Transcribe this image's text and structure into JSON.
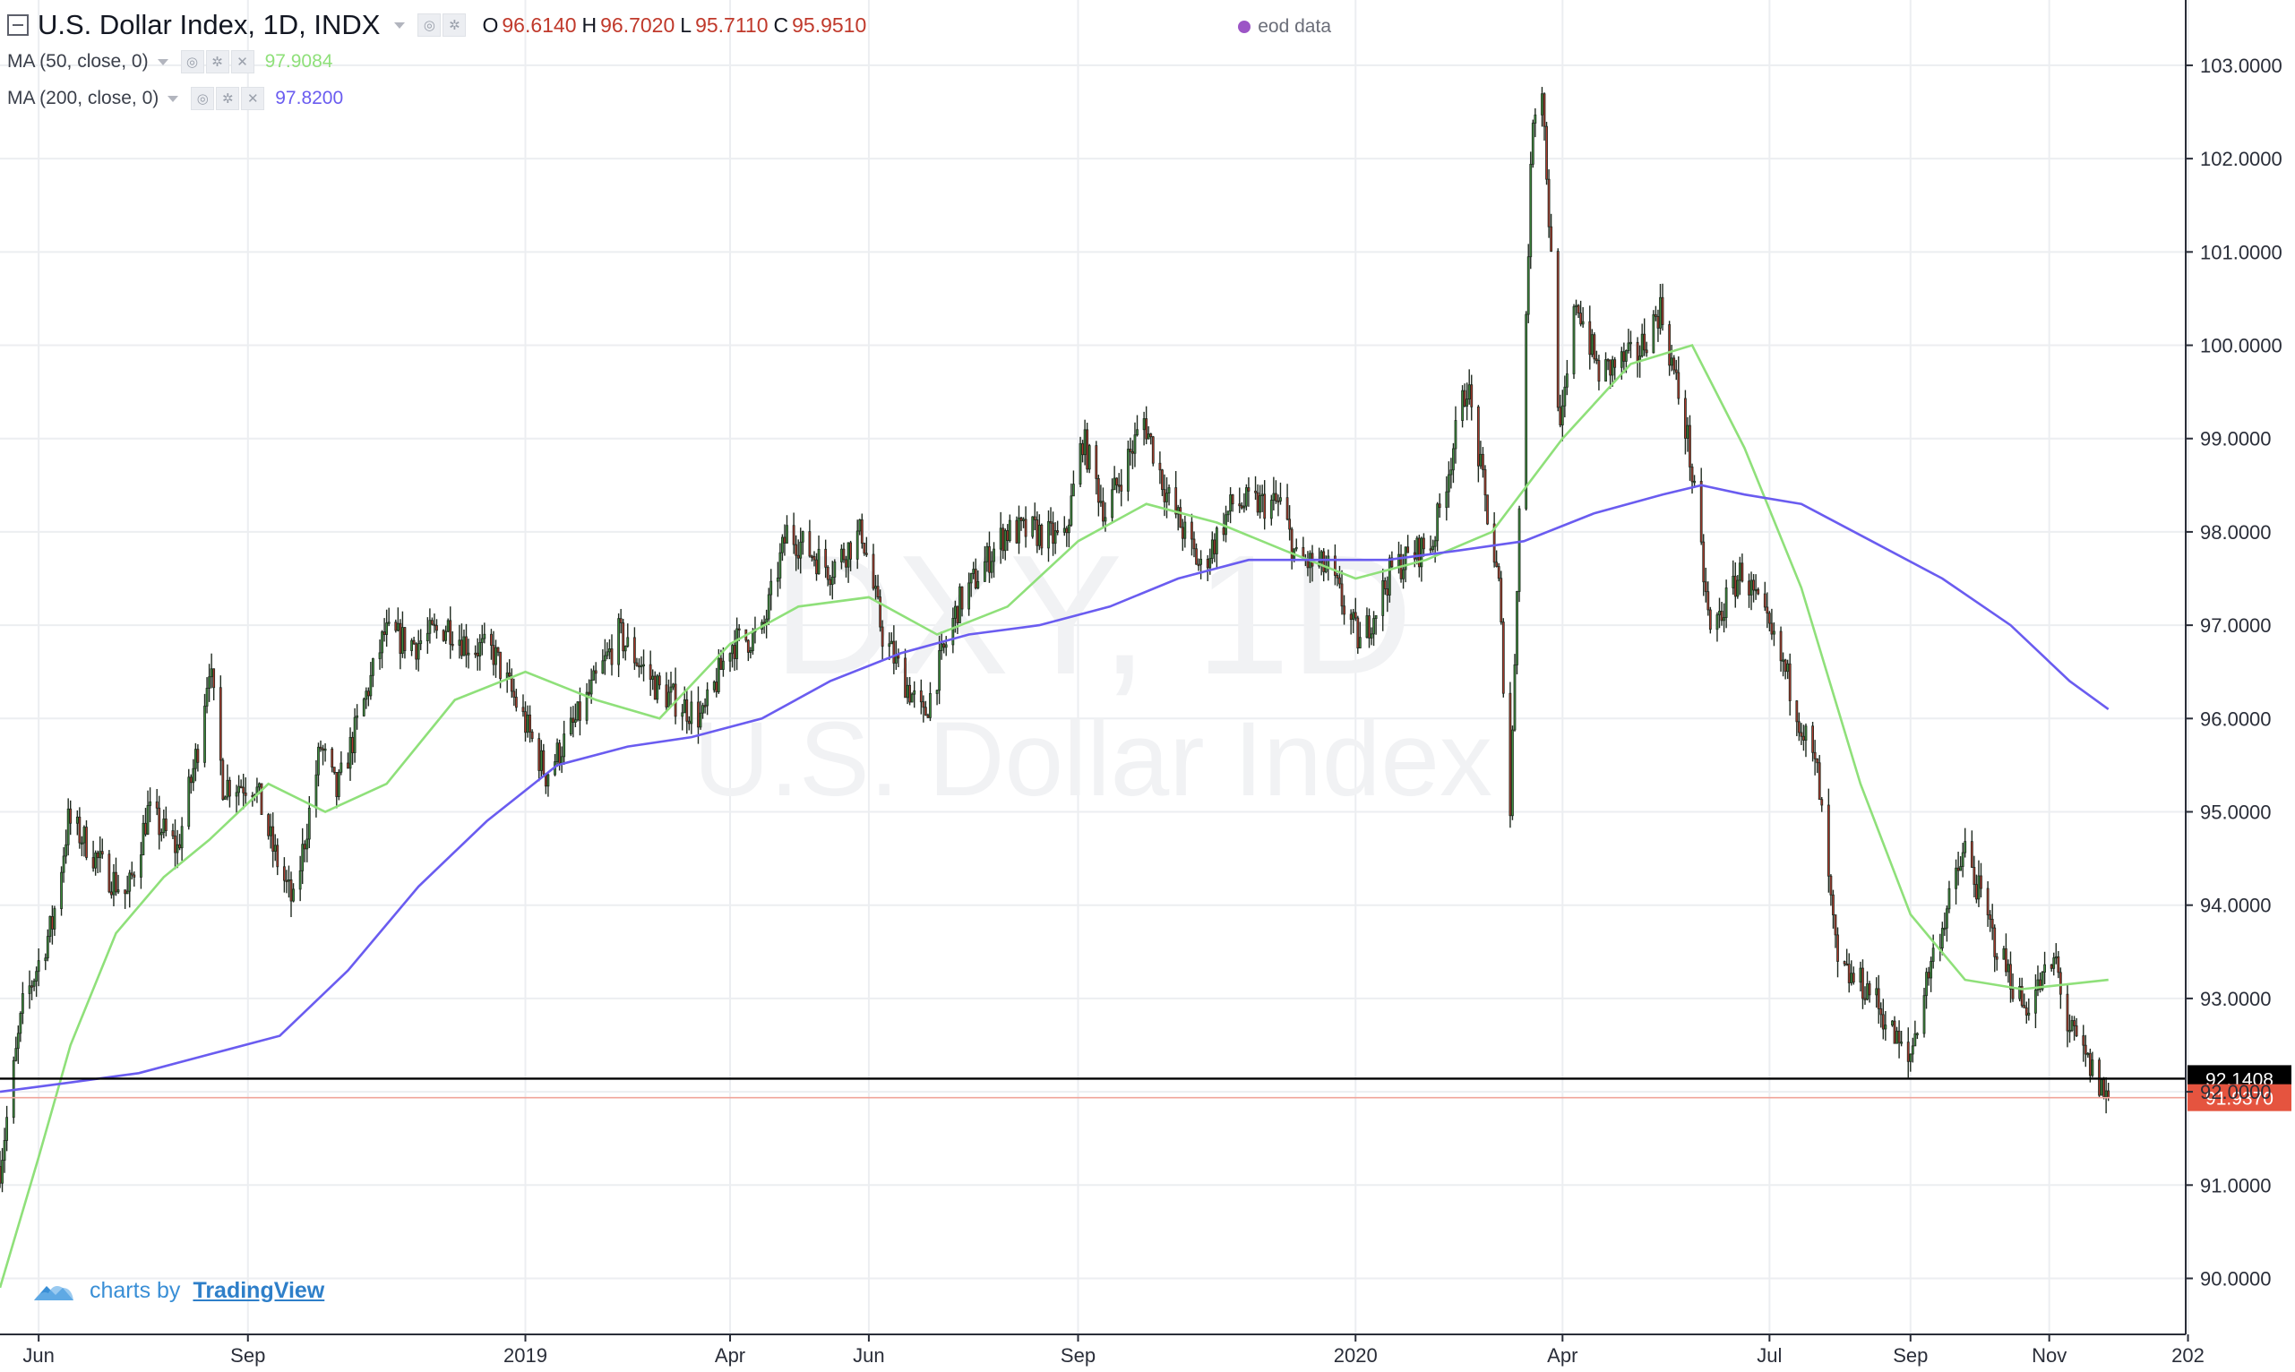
{
  "header": {
    "title": "U.S. Dollar Index, 1D, INDX",
    "ohlc": [
      {
        "key": "O",
        "value": "96.6140"
      },
      {
        "key": "H",
        "value": "96.7020"
      },
      {
        "key": "L",
        "value": "95.7110"
      },
      {
        "key": "C",
        "value": "95.9510"
      }
    ],
    "eod_label": "eod data"
  },
  "indicators": [
    {
      "label": "MA (50, close, 0)",
      "value": "97.9084",
      "color": "#8fe07a"
    },
    {
      "label": "MA (200, close, 0)",
      "value": "97.8200",
      "color": "#6a5cf0"
    }
  ],
  "watermark": {
    "line1": "DXY, 1D",
    "line2": "U.S. Dollar Index"
  },
  "branding": {
    "prefix": "charts by",
    "name": "TradingView"
  },
  "colors": {
    "up": "#3f8f3f",
    "down": "#b03a2e",
    "grid": "#eceef1",
    "axis": "#2a2e39",
    "last": "#e5543f"
  },
  "chart_data": {
    "type": "candlestick",
    "y_ticks": [
      "90.0000",
      "91.0000",
      "92.0000",
      "93.0000",
      "94.0000",
      "95.0000",
      "96.0000",
      "97.0000",
      "98.0000",
      "99.0000",
      "100.0000",
      "101.0000",
      "102.0000",
      "103.0000"
    ],
    "ylim": [
      89.4,
      103.7
    ],
    "x_ticks": [
      "Jun",
      "Sep",
      "2019",
      "Apr",
      "Jun",
      "Sep",
      "2020",
      "Apr",
      "Jul",
      "Sep",
      "Nov",
      "202"
    ],
    "x_range": [
      "2018-05-15",
      "2020-12-31"
    ],
    "price_levels": [
      {
        "label": "92.1408",
        "value": 92.1408,
        "style": "black"
      },
      {
        "label": "91.9370",
        "value": 91.937,
        "style": "red"
      }
    ],
    "close_path": [
      [
        "2018-05-15",
        91.2
      ],
      [
        "2018-05-25",
        92.9
      ],
      [
        "2018-06-07",
        93.8
      ],
      [
        "2018-06-14",
        94.9
      ],
      [
        "2018-06-21",
        94.7
      ],
      [
        "2018-06-29",
        94.4
      ],
      [
        "2018-07-10",
        94.1
      ],
      [
        "2018-07-19",
        95.0
      ],
      [
        "2018-08-01",
        94.6
      ],
      [
        "2018-08-10",
        95.7
      ],
      [
        "2018-08-15",
        96.6
      ],
      [
        "2018-08-21",
        95.3
      ],
      [
        "2018-09-04",
        95.3
      ],
      [
        "2018-09-12",
        94.6
      ],
      [
        "2018-09-21",
        94.0
      ],
      [
        "2018-10-03",
        95.7
      ],
      [
        "2018-10-10",
        95.2
      ],
      [
        "2018-10-31",
        96.9
      ],
      [
        "2018-11-14",
        96.8
      ],
      [
        "2018-11-28",
        97.0
      ],
      [
        "2018-12-06",
        96.8
      ],
      [
        "2018-12-18",
        96.7
      ],
      [
        "2018-12-31",
        96.0
      ],
      [
        "2019-01-10",
        95.4
      ],
      [
        "2019-01-24",
        96.0
      ],
      [
        "2019-02-11",
        96.9
      ],
      [
        "2019-03-01",
        96.3
      ],
      [
        "2019-03-20",
        96.0
      ],
      [
        "2019-04-01",
        96.8
      ],
      [
        "2019-04-15",
        96.9
      ],
      [
        "2019-04-26",
        98.0
      ],
      [
        "2019-05-15",
        97.6
      ],
      [
        "2019-05-29",
        98.0
      ],
      [
        "2019-06-07",
        96.9
      ],
      [
        "2019-06-25",
        96.0
      ],
      [
        "2019-07-10",
        97.2
      ],
      [
        "2019-07-31",
        98.0
      ],
      [
        "2019-08-13",
        98.0
      ],
      [
        "2019-08-26",
        97.9
      ],
      [
        "2019-09-03",
        99.0
      ],
      [
        "2019-09-13",
        98.2
      ],
      [
        "2019-09-30",
        99.2
      ],
      [
        "2019-10-10",
        98.4
      ],
      [
        "2019-10-25",
        97.6
      ],
      [
        "2019-11-08",
        98.3
      ],
      [
        "2019-11-29",
        98.3
      ],
      [
        "2019-12-06",
        97.7
      ],
      [
        "2019-12-20",
        97.6
      ],
      [
        "2020-01-03",
        96.8
      ],
      [
        "2020-01-17",
        97.6
      ],
      [
        "2020-02-04",
        97.9
      ],
      [
        "2020-02-19",
        99.6
      ],
      [
        "2020-03-04",
        97.4
      ],
      [
        "2020-03-09",
        95.0
      ],
      [
        "2020-03-12",
        97.5
      ],
      [
        "2020-03-19",
        102.5
      ],
      [
        "2020-03-23",
        102.8
      ],
      [
        "2020-03-31",
        99.0
      ],
      [
        "2020-04-07",
        100.5
      ],
      [
        "2020-04-17",
        99.7
      ],
      [
        "2020-05-04",
        99.9
      ],
      [
        "2020-05-14",
        100.4
      ],
      [
        "2020-05-26",
        99.0
      ],
      [
        "2020-06-05",
        96.9
      ],
      [
        "2020-06-19",
        97.6
      ],
      [
        "2020-07-08",
        96.5
      ],
      [
        "2020-07-22",
        95.4
      ],
      [
        "2020-07-31",
        93.3
      ],
      [
        "2020-08-14",
        93.1
      ],
      [
        "2020-08-31",
        92.3
      ],
      [
        "2020-09-09",
        93.3
      ],
      [
        "2020-09-25",
        94.6
      ],
      [
        "2020-10-08",
        93.6
      ],
      [
        "2020-10-21",
        92.9
      ],
      [
        "2020-11-04",
        93.4
      ],
      [
        "2020-11-09",
        92.7
      ],
      [
        "2020-11-18",
        92.3
      ],
      [
        "2020-11-25",
        92.0
      ],
      [
        "2020-11-27",
        91.94
      ]
    ],
    "series": [
      {
        "name": "MA (50, close, 0)",
        "points": [
          [
            "2018-05-15",
            89.9
          ],
          [
            "2018-06-01",
            91.3
          ],
          [
            "2018-06-15",
            92.5
          ],
          [
            "2018-07-05",
            93.7
          ],
          [
            "2018-07-26",
            94.3
          ],
          [
            "2018-08-15",
            94.7
          ],
          [
            "2018-09-10",
            95.3
          ],
          [
            "2018-10-05",
            95.0
          ],
          [
            "2018-11-01",
            95.3
          ],
          [
            "2018-12-01",
            96.2
          ],
          [
            "2019-01-01",
            96.5
          ],
          [
            "2019-02-01",
            96.2
          ],
          [
            "2019-03-01",
            96.0
          ],
          [
            "2019-04-01",
            96.8
          ],
          [
            "2019-05-01",
            97.2
          ],
          [
            "2019-06-01",
            97.3
          ],
          [
            "2019-07-01",
            96.9
          ],
          [
            "2019-08-01",
            97.2
          ],
          [
            "2019-09-01",
            97.9
          ],
          [
            "2019-10-01",
            98.3
          ],
          [
            "2019-11-01",
            98.1
          ],
          [
            "2019-12-01",
            97.8
          ],
          [
            "2020-01-01",
            97.5
          ],
          [
            "2020-02-01",
            97.7
          ],
          [
            "2020-03-01",
            98.0
          ],
          [
            "2020-04-01",
            99.0
          ],
          [
            "2020-05-01",
            99.8
          ],
          [
            "2020-05-28",
            100.0
          ],
          [
            "2020-06-20",
            98.9
          ],
          [
            "2020-07-15",
            97.4
          ],
          [
            "2020-08-10",
            95.3
          ],
          [
            "2020-09-01",
            93.9
          ],
          [
            "2020-09-25",
            93.2
          ],
          [
            "2020-10-20",
            93.1
          ],
          [
            "2020-11-27",
            93.2
          ]
        ]
      },
      {
        "name": "MA (200, close, 0)",
        "points": [
          [
            "2018-05-15",
            92.0
          ],
          [
            "2018-06-15",
            92.1
          ],
          [
            "2018-07-15",
            92.2
          ],
          [
            "2018-08-15",
            92.4
          ],
          [
            "2018-09-15",
            92.6
          ],
          [
            "2018-10-15",
            93.3
          ],
          [
            "2018-11-15",
            94.2
          ],
          [
            "2018-12-15",
            94.9
          ],
          [
            "2019-01-15",
            95.5
          ],
          [
            "2019-02-15",
            95.7
          ],
          [
            "2019-03-15",
            95.8
          ],
          [
            "2019-04-15",
            96.0
          ],
          [
            "2019-05-15",
            96.4
          ],
          [
            "2019-06-15",
            96.7
          ],
          [
            "2019-07-15",
            96.9
          ],
          [
            "2019-08-15",
            97.0
          ],
          [
            "2019-09-15",
            97.2
          ],
          [
            "2019-10-15",
            97.5
          ],
          [
            "2019-11-15",
            97.7
          ],
          [
            "2019-12-15",
            97.7
          ],
          [
            "2020-01-15",
            97.7
          ],
          [
            "2020-02-15",
            97.8
          ],
          [
            "2020-03-15",
            97.9
          ],
          [
            "2020-04-15",
            98.2
          ],
          [
            "2020-05-15",
            98.4
          ],
          [
            "2020-06-01",
            98.5
          ],
          [
            "2020-06-20",
            98.4
          ],
          [
            "2020-07-15",
            98.3
          ],
          [
            "2020-08-15",
            97.9
          ],
          [
            "2020-09-15",
            97.5
          ],
          [
            "2020-10-15",
            97.0
          ],
          [
            "2020-11-10",
            96.4
          ],
          [
            "2020-11-27",
            96.1
          ]
        ]
      }
    ]
  }
}
